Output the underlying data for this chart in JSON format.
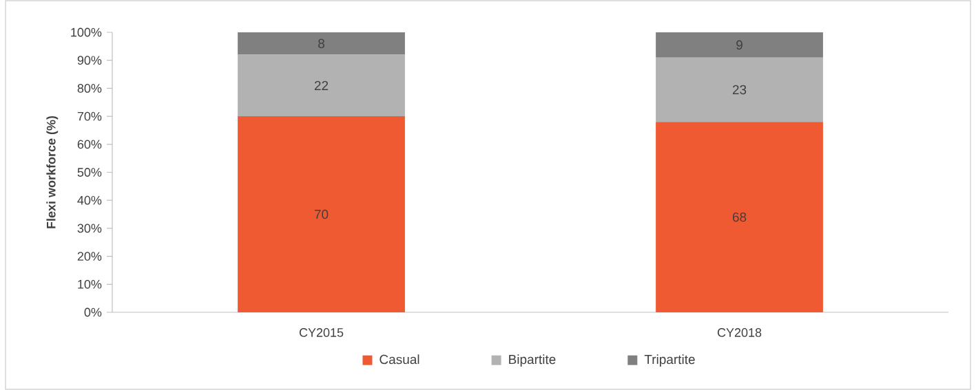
{
  "chart_data": {
    "type": "bar",
    "stacked": true,
    "ylabel": "Flexi workforce (%)",
    "categories": [
      "CY2015",
      "CY2018"
    ],
    "series": [
      {
        "name": "Casual",
        "color": "#f05a32",
        "values": [
          70,
          68
        ]
      },
      {
        "name": "Bipartite",
        "color": "#b2b2b2",
        "values": [
          22,
          23
        ]
      },
      {
        "name": "Tripartite",
        "color": "#808080",
        "values": [
          8,
          9
        ]
      }
    ],
    "ylim": [
      0,
      100
    ],
    "yticks": [
      {
        "value": 0,
        "label": "0%"
      },
      {
        "value": 10,
        "label": "10%"
      },
      {
        "value": 20,
        "label": "20%"
      },
      {
        "value": 30,
        "label": "30%"
      },
      {
        "value": 40,
        "label": "40%"
      },
      {
        "value": 50,
        "label": "50%"
      },
      {
        "value": 60,
        "label": "60%"
      },
      {
        "value": 70,
        "label": "70%"
      },
      {
        "value": 80,
        "label": "80%"
      },
      {
        "value": 90,
        "label": "90%"
      },
      {
        "value": 100,
        "label": "100%"
      }
    ],
    "data_labels": true,
    "legend": "bottom",
    "grid": false
  }
}
